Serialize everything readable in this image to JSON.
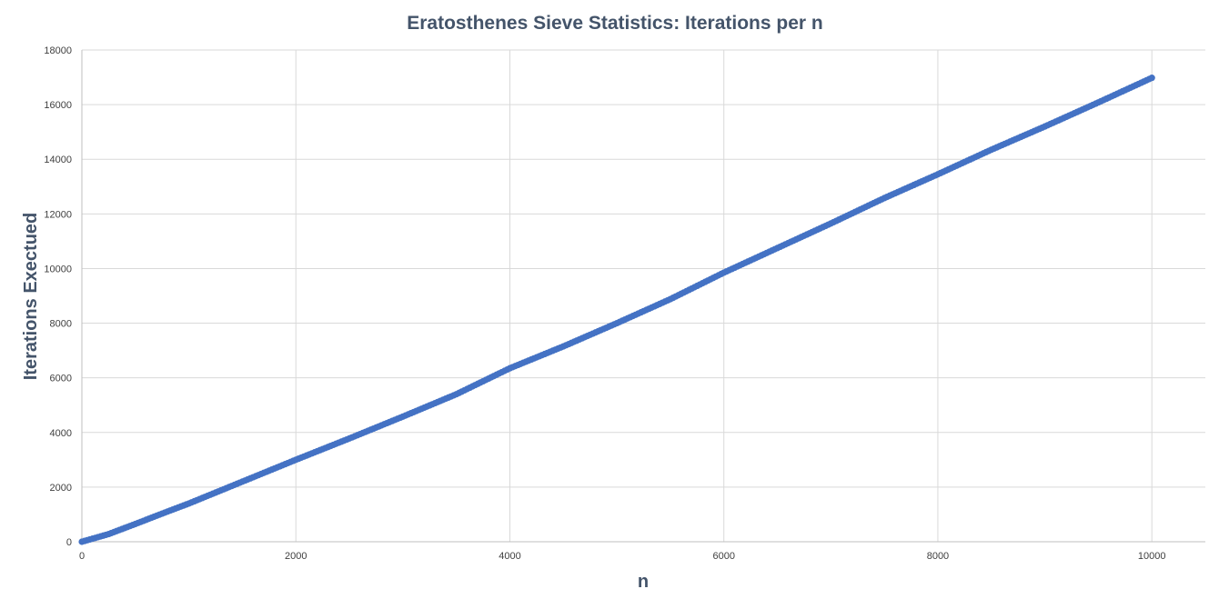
{
  "chart_data": {
    "type": "scatter",
    "title": "Eratosthenes Sieve Statistics: Iterations per n",
    "xlabel": "n",
    "ylabel": "Iterations Exectued",
    "xlim": [
      0,
      10500
    ],
    "ylim": [
      0,
      18000
    ],
    "x_ticks": [
      0,
      2000,
      4000,
      6000,
      8000,
      10000
    ],
    "y_ticks": [
      0,
      2000,
      4000,
      6000,
      8000,
      10000,
      12000,
      14000,
      16000,
      18000
    ],
    "x_tick_labels": [
      "0",
      "2000",
      "4000",
      "6000",
      "8000",
      "10000"
    ],
    "y_tick_labels": [
      "0",
      "2000",
      "4000",
      "6000",
      "8000",
      "10000",
      "12000",
      "14000",
      "16000",
      "18000"
    ],
    "grid": true,
    "legend": "none",
    "series": [
      {
        "color": "#4472C4",
        "x": [
          0,
          250,
          500,
          750,
          1000,
          1500,
          2000,
          2500,
          3000,
          3500,
          4000,
          4500,
          5000,
          5500,
          6000,
          6500,
          7000,
          7500,
          8000,
          8500,
          9000,
          9500,
          10000
        ],
        "y": [
          0,
          280,
          650,
          1030,
          1400,
          2200,
          3000,
          3780,
          4580,
          5400,
          6350,
          7150,
          8000,
          8880,
          9850,
          10750,
          11650,
          12580,
          13450,
          14350,
          15200,
          16080,
          16980
        ]
      }
    ]
  }
}
